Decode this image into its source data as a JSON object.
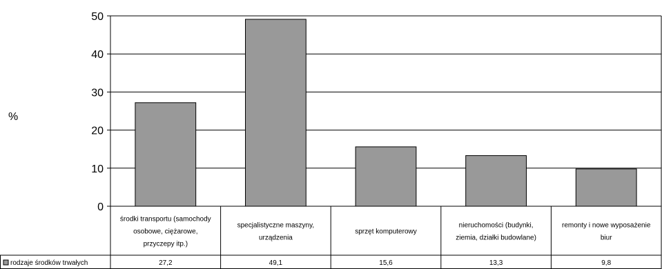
{
  "chart_data": {
    "type": "bar",
    "ylabel": "%",
    "ylim": [
      0,
      50
    ],
    "yticks": [
      0,
      10,
      20,
      30,
      40,
      50
    ],
    "grid": true,
    "categories": [
      [
        "środki transportu (samochody",
        "osobowe, ciężarowe,",
        "przyczepy itp.)"
      ],
      [
        "specjalistyczne maszyny,",
        "urządzenia"
      ],
      [
        "sprzęt komputerowy"
      ],
      [
        "nieruchomości (budynki,",
        "ziemia, działki budowlane)"
      ],
      [
        "remonty i nowe wyposażenie",
        "biur"
      ]
    ],
    "series": [
      {
        "name": "rodzaje środków trwałych",
        "values": [
          27.2,
          49.1,
          15.6,
          13.3,
          9.8
        ],
        "value_labels": [
          "27,2",
          "49,1",
          "15,6",
          "13,3",
          "9,8"
        ]
      }
    ],
    "colors": {
      "bar": "#999999",
      "stroke": "#000000"
    }
  }
}
